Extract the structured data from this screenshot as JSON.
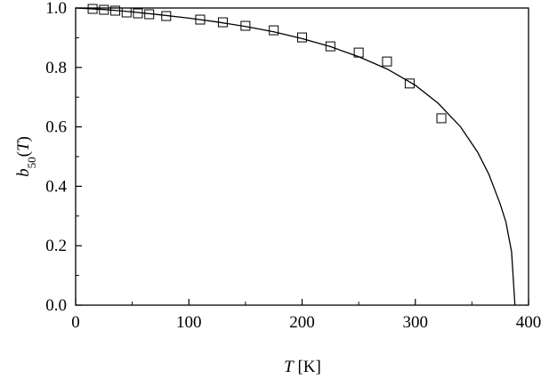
{
  "chart_data": {
    "type": "scatter",
    "xlabel": [
      "T",
      " [K]"
    ],
    "ylabel": [
      "b",
      "50",
      "(",
      "T",
      ")"
    ],
    "xlim": [
      0,
      400
    ],
    "ylim": [
      0,
      1.0
    ],
    "xticks": [
      0,
      100,
      200,
      300,
      400
    ],
    "yticks": [
      {
        "value": 0,
        "label": "0.0"
      },
      {
        "value": 0.2,
        "label": "0.2"
      },
      {
        "value": 0.4,
        "label": "0.4"
      },
      {
        "value": 0.6,
        "label": "0.6"
      },
      {
        "value": 0.8,
        "label": "0.8"
      },
      {
        "value": 1.0,
        "label": "1.0"
      }
    ],
    "xminorticks": [
      50,
      150,
      250,
      350
    ],
    "yminorticks": [
      0.1,
      0.3,
      0.5,
      0.7,
      0.9
    ],
    "color": "#000000",
    "series": [
      {
        "type": "scatter",
        "marker": "square",
        "x": [
          15,
          25,
          35,
          45,
          55,
          65,
          80,
          110,
          130,
          150,
          175,
          200,
          225,
          250,
          275,
          295,
          323
        ],
        "values": [
          0.997,
          0.994,
          0.991,
          0.985,
          0.982,
          0.979,
          0.973,
          0.961,
          0.952,
          0.94,
          0.925,
          0.901,
          0.871,
          0.85,
          0.82,
          0.746,
          0.629
        ]
      },
      {
        "type": "line",
        "x": [
          0,
          25,
          50,
          75,
          100,
          125,
          150,
          175,
          200,
          225,
          250,
          275,
          300,
          320,
          340,
          355,
          365,
          375,
          380,
          385,
          388
        ],
        "values": [
          1.0,
          0.995,
          0.987,
          0.977,
          0.966,
          0.953,
          0.938,
          0.92,
          0.897,
          0.87,
          0.836,
          0.795,
          0.74,
          0.68,
          0.6,
          0.515,
          0.44,
          0.34,
          0.28,
          0.18,
          0.0
        ]
      }
    ]
  }
}
